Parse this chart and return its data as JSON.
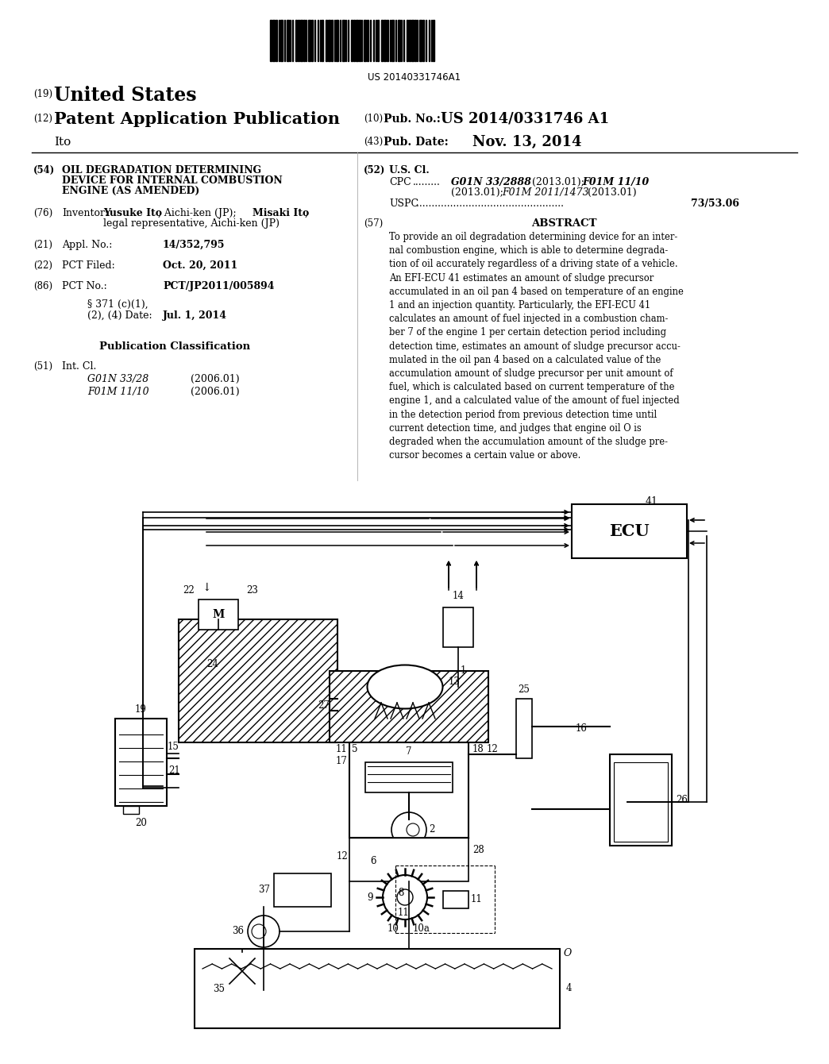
{
  "background_color": "#ffffff",
  "text_color": "#000000",
  "barcode_text": "US 20140331746A1",
  "country": "United States",
  "pub_type": "Patent Application Publication",
  "inventor_label": "Ito",
  "pub_no": "US 2014/0331746 A1",
  "pub_date": "Nov. 13, 2014",
  "title_54": "OIL DEGRADATION DETERMINING\nDEVICE FOR INTERNAL COMBUSTION\nENGINE (AS AMENDED)",
  "inventor_bold": "Yusuke Ito",
  "inventor_rest": ", Aichi-ken (JP); ",
  "inventor_bold2": "Misaki Ito",
  "inventor_rest2": ",",
  "inventor_line2": "legal representative, Aichi-ken (JP)",
  "appl_no": "14/352,795",
  "pct_filed": "Oct. 20, 2011",
  "pct_no": "PCT/JP2011/005894",
  "section_371_date": "Jul. 1, 2014",
  "int_cl_1": "G01N 33/28",
  "int_cl_1_date": "(2006.01)",
  "int_cl_2": "F01M 11/10",
  "int_cl_2_date": "(2006.01)",
  "uspc_text": "73/53.06",
  "abstract_text": "To provide an oil degradation determining device for an inter-\nnal combustion engine, which is able to determine degrada-\ntion of oil accurately regardless of a driving state of a vehicle.\nAn EFI-ECU 41 estimates an amount of sludge precursor\naccumulated in an oil pan 4 based on temperature of an engine\n1 and an injection quantity. Particularly, the EFI-ECU 41\ncalculates an amount of fuel injected in a combustion cham-\nber 7 of the engine 1 per certain detection period including\ndetection time, estimates an amount of sludge precursor accu-\nmulated in the oil pan 4 based on a calculated value of the\naccumulation amount of sludge precursor per unit amount of\nfuel, which is calculated based on current temperature of the\nengine 1, and a calculated value of the amount of fuel injected\nin the detection period from previous detection time until\ncurrent detection time, and judges that engine oil O is\ndegraded when the accumulation amount of the sludge pre-\ncursor becomes a certain value or above."
}
